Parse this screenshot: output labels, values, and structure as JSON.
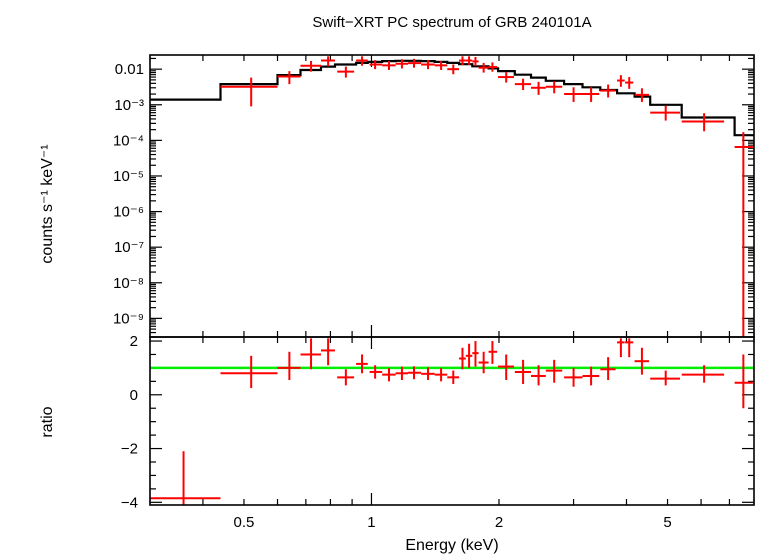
{
  "chart_data": [
    {
      "type": "scatter",
      "title": "Swift−XRT PC spectrum of GRB 240101A",
      "xlabel": "Energy (keV)",
      "ylabel": "counts s⁻¹ keV⁻¹",
      "xscale": "log",
      "yscale": "log",
      "xlim": [
        0.3,
        8.0
      ],
      "ylim": [
        3e-10,
        0.025
      ],
      "xticks": [
        0.5,
        1,
        2,
        5
      ],
      "xticklabels": [
        "0.5",
        "1",
        "2",
        "5"
      ],
      "yticks": [
        0.01,
        0.001,
        0.0001,
        1e-05,
        1e-06,
        1e-07,
        1e-08,
        1e-09
      ],
      "yticklabels": [
        "0.01",
        "10⁻³",
        "10⁻⁴",
        "10⁻⁵",
        "10⁻⁶",
        "10⁻⁷",
        "10⁻⁸",
        "10⁻⁹"
      ],
      "series": [
        {
          "kind": "data",
          "color": "#ff0000",
          "points": [
            {
              "x": 0.52,
              "xlo": 0.44,
              "xhi": 0.6,
              "y": 0.0032,
              "ylo": 0.0009,
              "yhi": 0.0058
            },
            {
              "x": 0.64,
              "xlo": 0.6,
              "xhi": 0.68,
              "y": 0.0062,
              "ylo": 0.0038,
              "yhi": 0.0088
            },
            {
              "x": 0.72,
              "xlo": 0.68,
              "xhi": 0.76,
              "y": 0.0125,
              "ylo": 0.0085,
              "yhi": 0.017
            },
            {
              "x": 0.79,
              "xlo": 0.76,
              "xhi": 0.82,
              "y": 0.0175,
              "ylo": 0.012,
              "yhi": 0.023
            },
            {
              "x": 0.87,
              "xlo": 0.83,
              "xhi": 0.91,
              "y": 0.0085,
              "ylo": 0.0058,
              "yhi": 0.0118
            },
            {
              "x": 0.95,
              "xlo": 0.92,
              "xhi": 0.98,
              "y": 0.0175,
              "ylo": 0.0125,
              "yhi": 0.023
            },
            {
              "x": 1.02,
              "xlo": 0.99,
              "xhi": 1.06,
              "y": 0.0135,
              "ylo": 0.01,
              "yhi": 0.018
            },
            {
              "x": 1.1,
              "xlo": 1.06,
              "xhi": 1.14,
              "y": 0.0128,
              "ylo": 0.0095,
              "yhi": 0.017
            },
            {
              "x": 1.18,
              "xlo": 1.14,
              "xhi": 1.22,
              "y": 0.0142,
              "ylo": 0.0105,
              "yhi": 0.019
            },
            {
              "x": 1.26,
              "xlo": 1.22,
              "xhi": 1.31,
              "y": 0.0148,
              "ylo": 0.011,
              "yhi": 0.0195
            },
            {
              "x": 1.36,
              "xlo": 1.31,
              "xhi": 1.41,
              "y": 0.0135,
              "ylo": 0.01,
              "yhi": 0.018
            },
            {
              "x": 1.46,
              "xlo": 1.41,
              "xhi": 1.51,
              "y": 0.0128,
              "ylo": 0.0095,
              "yhi": 0.017
            },
            {
              "x": 1.56,
              "xlo": 1.51,
              "xhi": 1.61,
              "y": 0.01,
              "ylo": 0.0072,
              "yhi": 0.0135
            },
            {
              "x": 1.64,
              "xlo": 1.61,
              "xhi": 1.67,
              "y": 0.0175,
              "ylo": 0.013,
              "yhi": 0.023
            },
            {
              "x": 1.7,
              "xlo": 1.67,
              "xhi": 1.73,
              "y": 0.0175,
              "ylo": 0.013,
              "yhi": 0.023
            },
            {
              "x": 1.76,
              "xlo": 1.73,
              "xhi": 1.79,
              "y": 0.0165,
              "ylo": 0.0122,
              "yhi": 0.022
            },
            {
              "x": 1.84,
              "xlo": 1.79,
              "xhi": 1.89,
              "y": 0.011,
              "ylo": 0.008,
              "yhi": 0.015
            },
            {
              "x": 1.93,
              "xlo": 1.89,
              "xhi": 1.98,
              "y": 0.0115,
              "ylo": 0.0085,
              "yhi": 0.0155
            },
            {
              "x": 2.08,
              "xlo": 1.99,
              "xhi": 2.17,
              "y": 0.006,
              "ylo": 0.0042,
              "yhi": 0.0082
            },
            {
              "x": 2.28,
              "xlo": 2.18,
              "xhi": 2.38,
              "y": 0.0038,
              "ylo": 0.0026,
              "yhi": 0.0054
            },
            {
              "x": 2.48,
              "xlo": 2.38,
              "xhi": 2.58,
              "y": 0.003,
              "ylo": 0.0019,
              "yhi": 0.0044
            },
            {
              "x": 2.7,
              "xlo": 2.58,
              "xhi": 2.82,
              "y": 0.0032,
              "ylo": 0.0021,
              "yhi": 0.0046
            },
            {
              "x": 3.0,
              "xlo": 2.85,
              "xhi": 3.15,
              "y": 0.002,
              "ylo": 0.0012,
              "yhi": 0.0031
            },
            {
              "x": 3.3,
              "xlo": 3.15,
              "xhi": 3.45,
              "y": 0.002,
              "ylo": 0.0012,
              "yhi": 0.0031
            },
            {
              "x": 3.62,
              "xlo": 3.47,
              "xhi": 3.77,
              "y": 0.0025,
              "ylo": 0.0016,
              "yhi": 0.0037
            },
            {
              "x": 3.88,
              "xlo": 3.8,
              "xhi": 3.96,
              "y": 0.0048,
              "ylo": 0.0032,
              "yhi": 0.0068
            },
            {
              "x": 4.06,
              "xlo": 3.97,
              "xhi": 4.15,
              "y": 0.0042,
              "ylo": 0.0028,
              "yhi": 0.006
            },
            {
              "x": 4.35,
              "xlo": 4.18,
              "xhi": 4.52,
              "y": 0.0019,
              "ylo": 0.0012,
              "yhi": 0.0029
            },
            {
              "x": 4.95,
              "xlo": 4.55,
              "xhi": 5.35,
              "y": 0.0006,
              "ylo": 0.00036,
              "yhi": 0.00095
            },
            {
              "x": 6.1,
              "xlo": 5.4,
              "xhi": 6.8,
              "y": 0.00034,
              "ylo": 0.00018,
              "yhi": 0.00058
            },
            {
              "x": 7.55,
              "xlo": 7.2,
              "xhi": 7.95,
              "y": 6.5e-05,
              "ylo": 3e-10,
              "yhi": 0.00017
            }
          ]
        },
        {
          "kind": "model",
          "color": "#000000",
          "steps": [
            {
              "x0": 0.3,
              "x1": 0.44,
              "y": 0.0014
            },
            {
              "x0": 0.44,
              "x1": 0.6,
              "y": 0.0038
            },
            {
              "x0": 0.6,
              "x1": 0.68,
              "y": 0.0068
            },
            {
              "x0": 0.68,
              "x1": 0.76,
              "y": 0.0095
            },
            {
              "x0": 0.76,
              "x1": 0.82,
              "y": 0.0118
            },
            {
              "x0": 0.82,
              "x1": 0.92,
              "y": 0.0135
            },
            {
              "x0": 0.92,
              "x1": 0.98,
              "y": 0.015
            },
            {
              "x0": 0.98,
              "x1": 1.06,
              "y": 0.016
            },
            {
              "x0": 1.06,
              "x1": 1.14,
              "y": 0.0168
            },
            {
              "x0": 1.14,
              "x1": 1.22,
              "y": 0.0172
            },
            {
              "x0": 1.22,
              "x1": 1.31,
              "y": 0.0172
            },
            {
              "x0": 1.31,
              "x1": 1.41,
              "y": 0.0168
            },
            {
              "x0": 1.41,
              "x1": 1.51,
              "y": 0.016
            },
            {
              "x0": 1.51,
              "x1": 1.61,
              "y": 0.015
            },
            {
              "x0": 1.61,
              "x1": 1.73,
              "y": 0.0138
            },
            {
              "x0": 1.73,
              "x1": 1.89,
              "y": 0.012
            },
            {
              "x0": 1.89,
              "x1": 1.99,
              "y": 0.0105
            },
            {
              "x0": 1.99,
              "x1": 2.18,
              "y": 0.0088
            },
            {
              "x0": 2.18,
              "x1": 2.38,
              "y": 0.007
            },
            {
              "x0": 2.38,
              "x1": 2.58,
              "y": 0.0058
            },
            {
              "x0": 2.58,
              "x1": 2.85,
              "y": 0.0047
            },
            {
              "x0": 2.85,
              "x1": 3.15,
              "y": 0.0038
            },
            {
              "x0": 3.15,
              "x1": 3.47,
              "y": 0.0031
            },
            {
              "x0": 3.47,
              "x1": 3.8,
              "y": 0.0026
            },
            {
              "x0": 3.8,
              "x1": 4.18,
              "y": 0.0021
            },
            {
              "x0": 4.18,
              "x1": 4.55,
              "y": 0.0017
            },
            {
              "x0": 4.55,
              "x1": 5.4,
              "y": 0.001
            },
            {
              "x0": 5.4,
              "x1": 7.2,
              "y": 0.00044
            },
            {
              "x0": 7.2,
              "x1": 8.0,
              "y": 0.00014
            }
          ]
        }
      ]
    },
    {
      "type": "scatter",
      "xlabel": "Energy (keV)",
      "ylabel": "ratio",
      "xscale": "log",
      "yscale": "linear",
      "xlim": [
        0.3,
        8.0
      ],
      "ylim": [
        -4.1,
        2.15
      ],
      "yticks": [
        2,
        0,
        -2,
        -4
      ],
      "yticklabels": [
        "2",
        "0",
        "−2",
        "−4"
      ],
      "reference_line": {
        "y": 1.0,
        "color": "#00ee00"
      },
      "series": [
        {
          "kind": "ratio",
          "color": "#ff0000",
          "points": [
            {
              "x": 0.36,
              "xlo": 0.3,
              "xhi": 0.44,
              "y": -3.85,
              "ylo": -4.1,
              "yhi": -2.1
            },
            {
              "x": 0.52,
              "xlo": 0.44,
              "xhi": 0.6,
              "y": 0.8,
              "ylo": 0.25,
              "yhi": 1.45
            },
            {
              "x": 0.64,
              "xlo": 0.6,
              "xhi": 0.68,
              "y": 1.0,
              "ylo": 0.55,
              "yhi": 1.6
            },
            {
              "x": 0.72,
              "xlo": 0.68,
              "xhi": 0.76,
              "y": 1.5,
              "ylo": 0.95,
              "yhi": 2.1
            },
            {
              "x": 0.79,
              "xlo": 0.76,
              "xhi": 0.82,
              "y": 1.65,
              "ylo": 1.1,
              "yhi": 2.1
            },
            {
              "x": 0.87,
              "xlo": 0.83,
              "xhi": 0.91,
              "y": 0.65,
              "ylo": 0.35,
              "yhi": 0.95
            },
            {
              "x": 0.95,
              "xlo": 0.92,
              "xhi": 0.98,
              "y": 1.15,
              "ylo": 0.8,
              "yhi": 1.5
            },
            {
              "x": 1.02,
              "xlo": 0.99,
              "xhi": 1.06,
              "y": 0.85,
              "ylo": 0.6,
              "yhi": 1.1
            },
            {
              "x": 1.1,
              "xlo": 1.06,
              "xhi": 1.14,
              "y": 0.75,
              "ylo": 0.5,
              "yhi": 1.0
            },
            {
              "x": 1.18,
              "xlo": 1.14,
              "xhi": 1.22,
              "y": 0.8,
              "ylo": 0.55,
              "yhi": 1.05
            },
            {
              "x": 1.26,
              "xlo": 1.22,
              "xhi": 1.31,
              "y": 0.82,
              "ylo": 0.58,
              "yhi": 1.06
            },
            {
              "x": 1.36,
              "xlo": 1.31,
              "xhi": 1.41,
              "y": 0.78,
              "ylo": 0.55,
              "yhi": 1.02
            },
            {
              "x": 1.46,
              "xlo": 1.41,
              "xhi": 1.51,
              "y": 0.75,
              "ylo": 0.5,
              "yhi": 1.0
            },
            {
              "x": 1.56,
              "xlo": 1.51,
              "xhi": 1.61,
              "y": 0.65,
              "ylo": 0.4,
              "yhi": 0.9
            },
            {
              "x": 1.64,
              "xlo": 1.61,
              "xhi": 1.67,
              "y": 1.35,
              "ylo": 0.95,
              "yhi": 1.75
            },
            {
              "x": 1.7,
              "xlo": 1.67,
              "xhi": 1.73,
              "y": 1.45,
              "ylo": 1.0,
              "yhi": 1.9
            },
            {
              "x": 1.76,
              "xlo": 1.73,
              "xhi": 1.79,
              "y": 1.55,
              "ylo": 1.05,
              "yhi": 2.0
            },
            {
              "x": 1.84,
              "xlo": 1.79,
              "xhi": 1.89,
              "y": 1.2,
              "ylo": 0.8,
              "yhi": 1.6
            },
            {
              "x": 1.93,
              "xlo": 1.89,
              "xhi": 1.98,
              "y": 1.6,
              "ylo": 1.15,
              "yhi": 2.0
            },
            {
              "x": 2.08,
              "xlo": 1.99,
              "xhi": 2.17,
              "y": 1.05,
              "ylo": 0.55,
              "yhi": 1.5
            },
            {
              "x": 2.28,
              "xlo": 2.18,
              "xhi": 2.38,
              "y": 0.85,
              "ylo": 0.4,
              "yhi": 1.3
            },
            {
              "x": 2.48,
              "xlo": 2.38,
              "xhi": 2.58,
              "y": 0.7,
              "ylo": 0.35,
              "yhi": 1.1
            },
            {
              "x": 2.7,
              "xlo": 2.58,
              "xhi": 2.82,
              "y": 0.9,
              "ylo": 0.45,
              "yhi": 1.3
            },
            {
              "x": 3.0,
              "xlo": 2.85,
              "xhi": 3.15,
              "y": 0.65,
              "ylo": 0.3,
              "yhi": 1.0
            },
            {
              "x": 3.3,
              "xlo": 3.15,
              "xhi": 3.45,
              "y": 0.7,
              "ylo": 0.35,
              "yhi": 1.05
            },
            {
              "x": 3.62,
              "xlo": 3.47,
              "xhi": 3.77,
              "y": 0.95,
              "ylo": 0.55,
              "yhi": 1.4
            },
            {
              "x": 3.88,
              "xlo": 3.8,
              "xhi": 3.96,
              "y": 1.95,
              "ylo": 1.4,
              "yhi": 2.1
            },
            {
              "x": 4.06,
              "xlo": 3.97,
              "xhi": 4.15,
              "y": 1.95,
              "ylo": 1.4,
              "yhi": 2.1
            },
            {
              "x": 4.35,
              "xlo": 4.18,
              "xhi": 4.52,
              "y": 1.25,
              "ylo": 0.75,
              "yhi": 1.75
            },
            {
              "x": 4.95,
              "xlo": 4.55,
              "xhi": 5.35,
              "y": 0.6,
              "ylo": 0.35,
              "yhi": 0.9
            },
            {
              "x": 6.1,
              "xlo": 5.4,
              "xhi": 6.8,
              "y": 0.75,
              "ylo": 0.45,
              "yhi": 1.1
            },
            {
              "x": 7.55,
              "xlo": 7.2,
              "xhi": 7.95,
              "y": 0.45,
              "ylo": -0.5,
              "yhi": 1.5
            }
          ]
        }
      ]
    }
  ]
}
